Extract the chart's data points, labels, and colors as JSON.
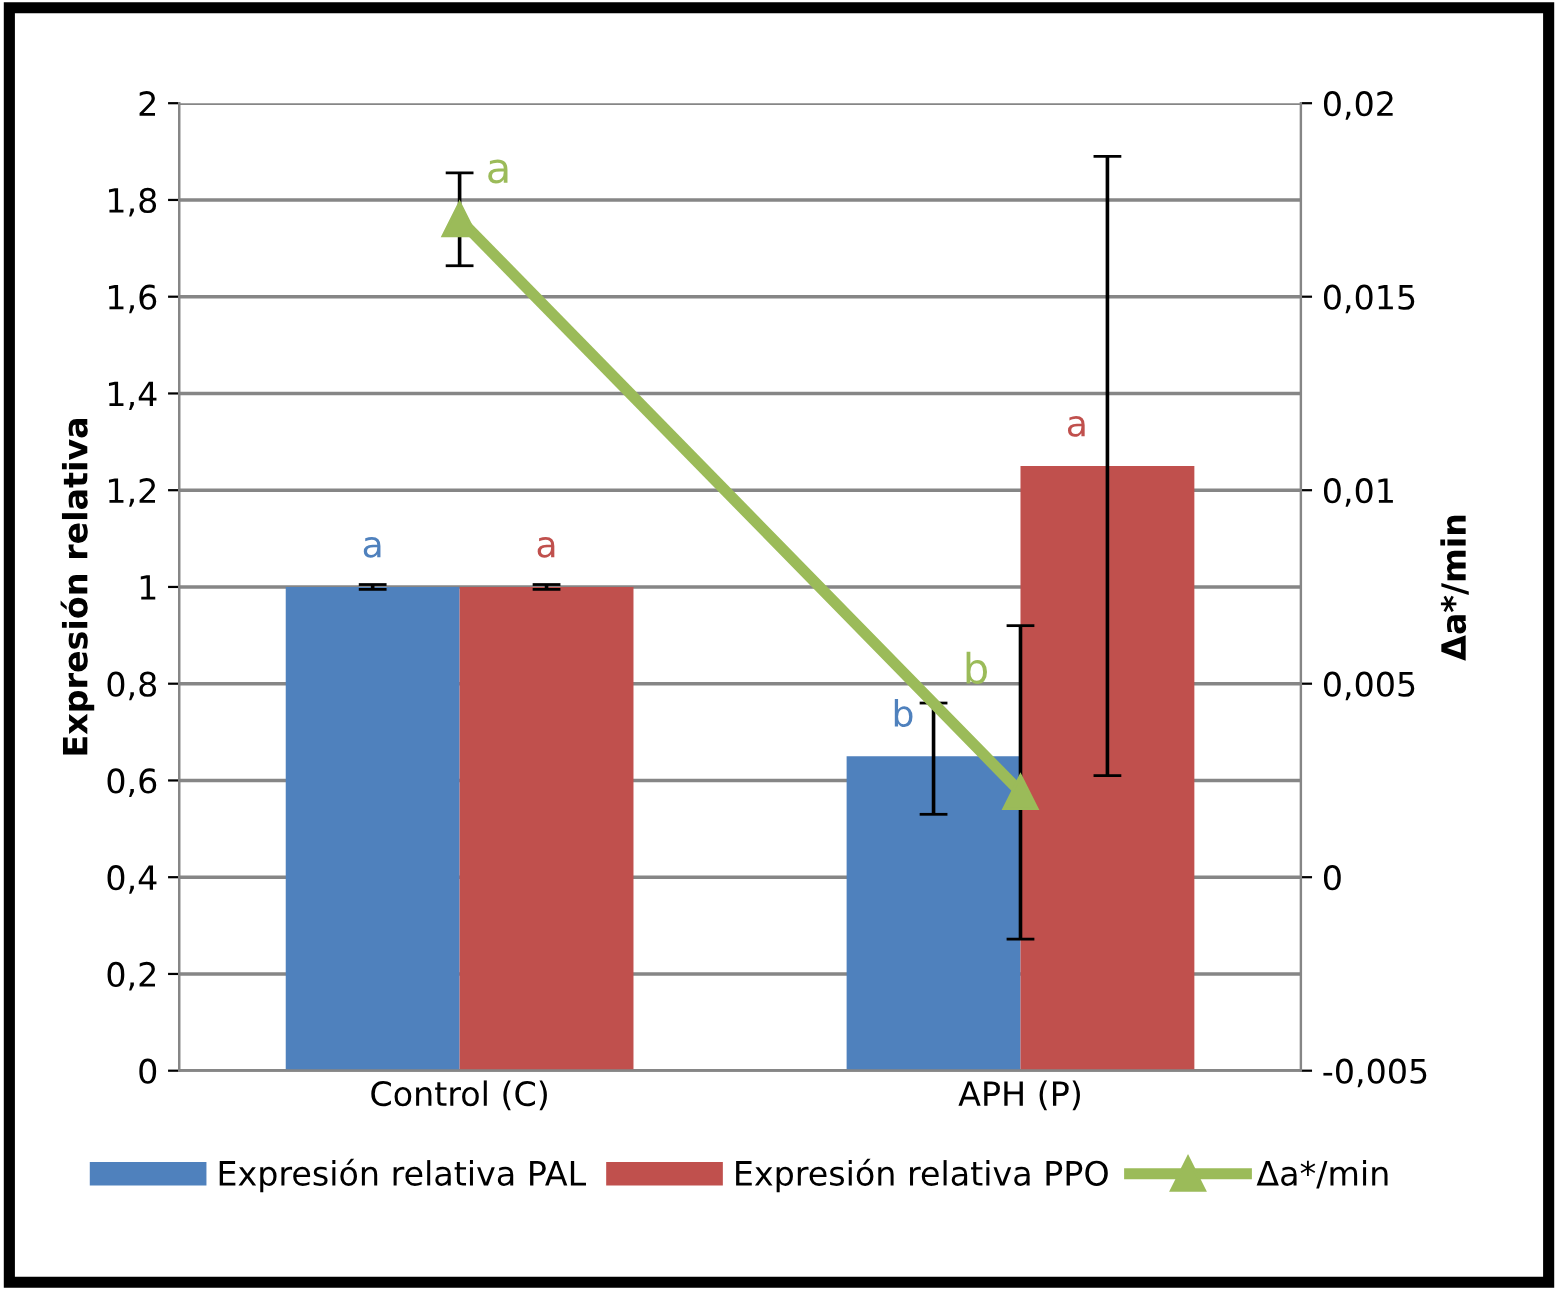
{
  "chart_data": {
    "type": "bar",
    "categories": [
      "Control (C)",
      "APH (P)"
    ],
    "ylabel": "Expresión relativa",
    "y2label": "Δa*/min",
    "series": [
      {
        "name": "Expresión relativa PAL",
        "color": "#4f81bd",
        "values": [
          1,
          0.65
        ],
        "errors": [
          0.005,
          [
            0.53,
            0.76
          ]
        ],
        "value_labels": [
          "a",
          "b"
        ]
      },
      {
        "name": "Expresión relativa PPO",
        "color": "#c0504d",
        "values": [
          1,
          1.25
        ],
        "errors": [
          0.005,
          [
            0.61,
            1.89
          ]
        ],
        "value_labels": [
          "a",
          "a"
        ]
      },
      {
        "name": "Δa*/min",
        "type": "line",
        "axis": "y2",
        "color": "#9bbb59",
        "values": [
          0.017,
          0.0022
        ],
        "errors": [
          [
            0.0158,
            0.0182
          ],
          [
            -0.0016,
            0.0065
          ]
        ],
        "value_labels": [
          "a",
          "b"
        ],
        "marker": "triangle"
      }
    ],
    "ylim": [
      0,
      2
    ],
    "yticks": [
      0,
      {
        "value": 0.2,
        "label": "0,2"
      },
      {
        "value": 0.4,
        "label": "0,4"
      },
      {
        "value": 0.6,
        "label": "0,6"
      },
      {
        "value": 0.8,
        "label": "0,8"
      },
      1,
      {
        "value": 1.2,
        "label": "1,2"
      },
      {
        "value": 1.4,
        "label": "1,4"
      },
      {
        "value": 1.6,
        "label": "1,6"
      },
      {
        "value": 1.8,
        "label": "1,8"
      },
      2
    ],
    "y2lim": [
      -0.005,
      0.02
    ],
    "y2ticks": [
      {
        "value": -0.005,
        "label": "-0,005"
      },
      0,
      {
        "value": 0.005,
        "label": "0,005"
      },
      {
        "value": 0.01,
        "label": "0,01"
      },
      {
        "value": 0.015,
        "label": "0,015"
      },
      {
        "value": 0.02,
        "label": "0,02"
      }
    ],
    "grid": "y",
    "legend": "bottom"
  }
}
